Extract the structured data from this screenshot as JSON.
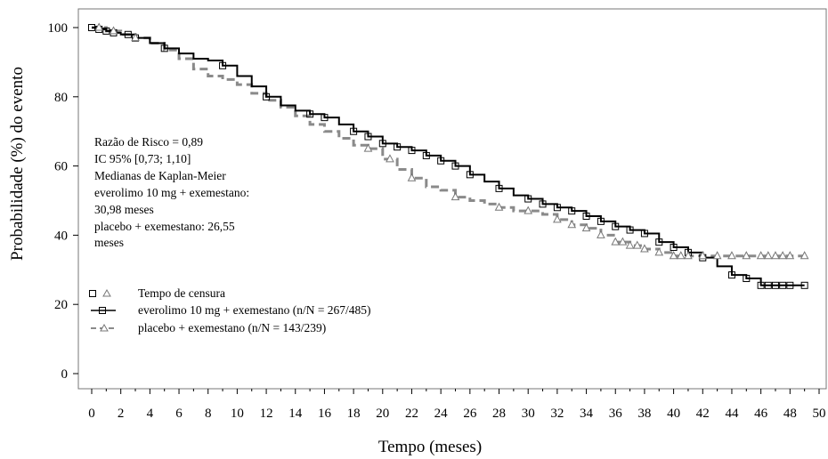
{
  "chart_data": {
    "type": "line",
    "title": "",
    "xlabel": "Tempo (meses)",
    "ylabel": "Probabilidade (%) do evento",
    "xlim": [
      0,
      50
    ],
    "ylim": [
      0,
      100
    ],
    "x_ticks": [
      "0",
      "2",
      "4",
      "6",
      "8",
      "10",
      "12",
      "14",
      "16",
      "18",
      "20",
      "22",
      "24",
      "26",
      "28",
      "30",
      "32",
      "34",
      "36",
      "38",
      "40",
      "42",
      "44",
      "46",
      "48",
      "50"
    ],
    "y_ticks": [
      "0",
      "20",
      "40",
      "60",
      "80",
      "100"
    ],
    "grid": false,
    "step": true,
    "stats_text": [
      "Razão de Risco = 0,89",
      "IC 95% [0,73; 1,10]",
      "Medianas de Kaplan-Meier",
      "everolimo 10 mg + exemestano:",
      "30,98 meses",
      "placebo + exemestano: 26,55",
      "meses"
    ],
    "legend": {
      "placement": "bottom-left",
      "censor_label": "Tempo de censura",
      "entries": [
        "everolimo 10 mg + exemestano (n/N = 267/485)",
        "placebo + exemestano (n/N = 143/239)"
      ]
    },
    "series": [
      {
        "name": "everolimo 10 mg + exemestano (n/N = 267/485)",
        "color": "#000000",
        "style": "solid",
        "marker": "square",
        "x": [
          0,
          0.5,
          1,
          1.5,
          2,
          3,
          4,
          5,
          6,
          7,
          8,
          9,
          10,
          11,
          12,
          13,
          14,
          15,
          16,
          17,
          18,
          19,
          20,
          21,
          22,
          23,
          24,
          25,
          26,
          27,
          28,
          29,
          30,
          31,
          32,
          33,
          34,
          35,
          36,
          37,
          38,
          39,
          40,
          41,
          42,
          43,
          44,
          45,
          46,
          47,
          48,
          49
        ],
        "y": [
          100,
          99.5,
          99,
          98.5,
          98,
          97,
          95.5,
          94,
          92.5,
          91,
          90.5,
          89,
          86,
          83,
          80,
          77.5,
          76,
          75,
          74,
          72,
          70,
          68.5,
          66.5,
          65.5,
          64.5,
          63,
          61.5,
          60,
          57.5,
          55.5,
          53.5,
          51.5,
          50.5,
          49,
          48,
          47,
          45.5,
          44,
          42.5,
          41.5,
          40.5,
          38,
          36.5,
          35,
          33.5,
          31,
          28.5,
          27.5,
          25.5,
          25.5,
          25.5,
          25.5
        ],
        "censor_x": [
          0,
          0.5,
          1,
          1.5,
          2.5,
          3,
          5,
          9,
          12,
          15,
          16,
          18,
          19,
          20,
          21,
          22,
          23,
          24,
          25,
          26,
          28,
          30,
          31,
          32,
          33,
          34,
          35,
          36,
          37,
          38,
          39,
          40,
          41,
          42,
          44,
          45,
          46,
          46.5,
          47,
          47.5,
          48,
          49
        ]
      },
      {
        "name": "placebo + exemestano (n/N = 143/239)",
        "color": "#8a8a8a",
        "style": "dashed",
        "marker": "triangle",
        "x": [
          0,
          1,
          2,
          3,
          4,
          5,
          6,
          7,
          8,
          9,
          10,
          11,
          12,
          13,
          14,
          15,
          16,
          17,
          18,
          19,
          20,
          21,
          22,
          23,
          24,
          25,
          26,
          27,
          28,
          29,
          30,
          31,
          32,
          33,
          34,
          35,
          36,
          37,
          38,
          39,
          40,
          41,
          42,
          43,
          44,
          45,
          46,
          47,
          48,
          49
        ],
        "y": [
          100,
          99,
          98,
          97,
          95.5,
          93.5,
          91,
          88,
          86,
          85,
          83.5,
          81,
          79,
          77,
          74.5,
          72,
          70,
          68,
          66,
          65,
          62,
          59,
          56.5,
          54,
          53,
          51,
          50,
          49,
          48,
          47,
          47,
          46,
          44.5,
          43,
          42,
          40,
          38,
          37,
          36,
          35,
          34,
          34,
          34,
          34,
          34,
          34,
          34,
          34,
          34,
          34
        ],
        "censor_x": [
          0.5,
          1.5,
          3,
          19,
          20.5,
          22,
          25,
          28,
          30,
          32,
          33,
          34,
          35,
          36,
          36.5,
          37,
          37.5,
          38,
          39,
          40,
          40.5,
          41,
          42,
          43,
          44,
          45,
          46,
          46.5,
          47,
          47.5,
          48,
          49
        ]
      }
    ]
  }
}
